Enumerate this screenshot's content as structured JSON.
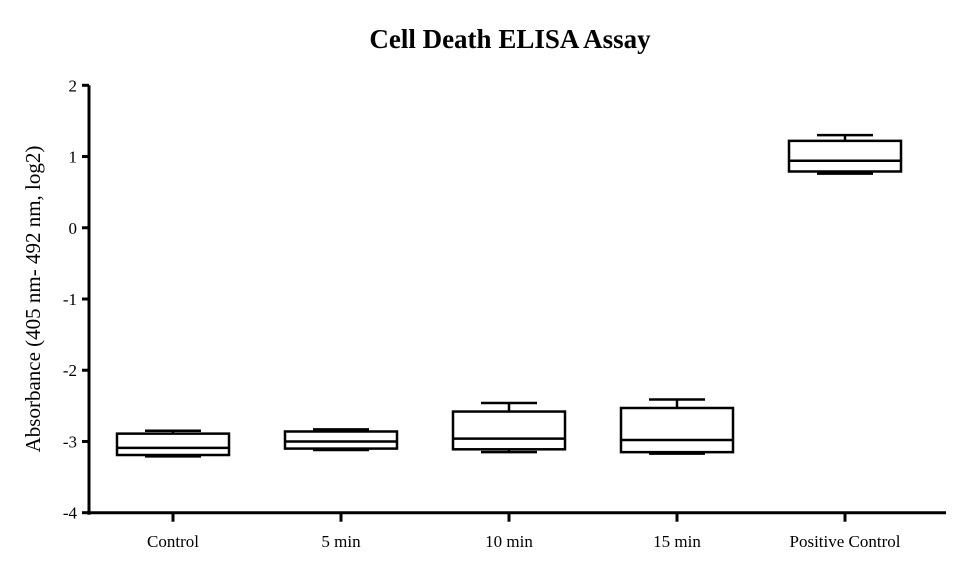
{
  "chart_data": {
    "type": "box",
    "title": "Cell Death ELISA Assay",
    "xlabel": "",
    "ylabel": "Absorbance (405 nm- 492 nm, log2)",
    "ylim": [
      -4,
      2
    ],
    "yticks": [
      2,
      1,
      0,
      -1,
      -2,
      -3,
      -4
    ],
    "grid": false,
    "categories": [
      "Control",
      "5 min",
      "10 min",
      "15 min",
      "Positive Control"
    ],
    "boxes": [
      {
        "min": -3.21,
        "q1": -3.19,
        "median": -3.09,
        "q3": -2.89,
        "max": -2.85
      },
      {
        "min": -3.12,
        "q1": -3.1,
        "median": -3.0,
        "q3": -2.86,
        "max": -2.83
      },
      {
        "min": -3.15,
        "q1": -3.11,
        "median": -2.96,
        "q3": -2.58,
        "max": -2.46
      },
      {
        "min": -3.17,
        "q1": -3.15,
        "median": -2.98,
        "q3": -2.53,
        "max": -2.41
      },
      {
        "min": 0.76,
        "q1": 0.79,
        "median": 0.94,
        "q3": 1.22,
        "max": 1.3
      }
    ],
    "colors": {
      "stroke": "#000000",
      "fill": "#ffffff"
    }
  }
}
